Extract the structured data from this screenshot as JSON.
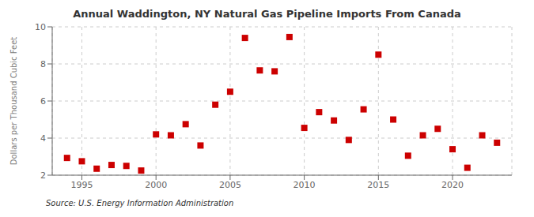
{
  "chart_data": {
    "type": "scatter",
    "title": "Annual Waddington, NY Natural Gas Pipeline Imports From Canada",
    "ylabel": "Dollars per Thousand Cubic Feet",
    "source": "Source: U.S. Energy Information Administration",
    "x": [
      1994,
      1995,
      1996,
      1997,
      1998,
      1999,
      2000,
      2001,
      2002,
      2003,
      2004,
      2005,
      2006,
      2007,
      2008,
      2009,
      2010,
      2011,
      2012,
      2013,
      2014,
      2015,
      2016,
      2017,
      2018,
      2019,
      2020,
      2021,
      2022,
      2023
    ],
    "values": [
      2.93,
      2.75,
      2.35,
      2.55,
      2.5,
      2.25,
      4.2,
      4.15,
      4.75,
      3.6,
      5.8,
      6.5,
      9.4,
      7.65,
      7.6,
      9.45,
      4.55,
      5.4,
      4.95,
      3.9,
      5.55,
      8.5,
      5.0,
      3.05,
      4.15,
      4.5,
      3.4,
      2.4,
      4.15,
      3.75
    ],
    "color": "#cc0000",
    "marker": "square",
    "xlim": [
      1993,
      2024
    ],
    "xticks": [
      1995,
      2000,
      2005,
      2010,
      2015,
      2020
    ],
    "ylim": [
      2,
      10
    ],
    "yticks": [
      2,
      4,
      6,
      8,
      10
    ],
    "grid": true
  }
}
